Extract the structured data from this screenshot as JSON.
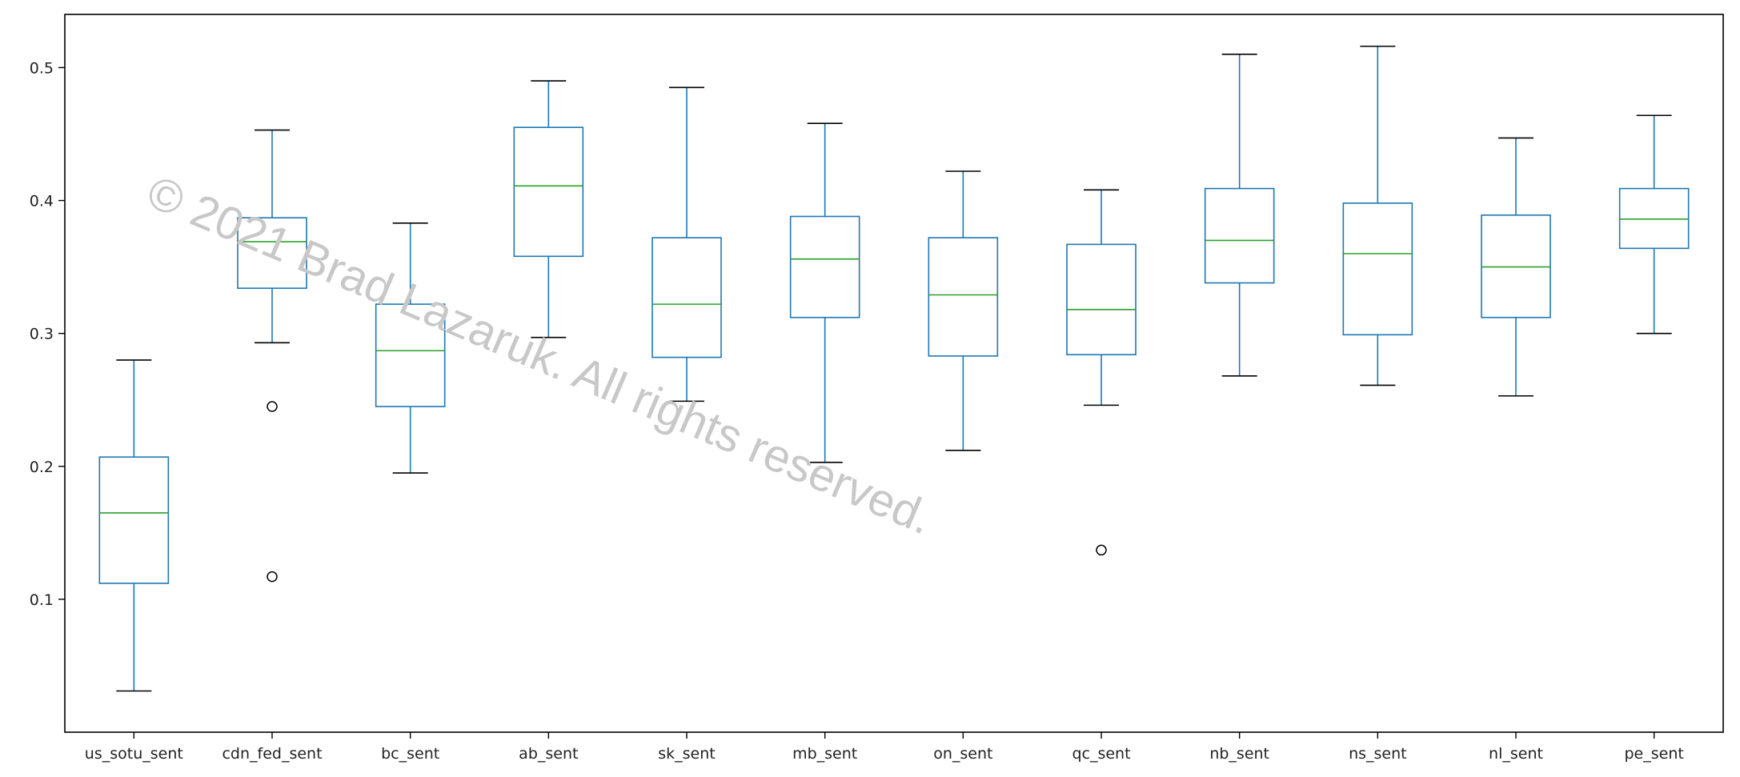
{
  "chart_data": {
    "type": "box",
    "categories": [
      "us_sotu_sent",
      "cdn_fed_sent",
      "bc_sent",
      "ab_sent",
      "sk_sent",
      "mb_sent",
      "on_sent",
      "qc_sent",
      "nb_sent",
      "ns_sent",
      "nl_sent",
      "pe_sent"
    ],
    "boxes": [
      {
        "whislo": 0.031,
        "q1": 0.112,
        "med": 0.165,
        "q3": 0.207,
        "whishi": 0.28,
        "fliers": []
      },
      {
        "whislo": 0.293,
        "q1": 0.334,
        "med": 0.369,
        "q3": 0.387,
        "whishi": 0.453,
        "fliers": [
          0.245,
          0.117
        ]
      },
      {
        "whislo": 0.195,
        "q1": 0.245,
        "med": 0.287,
        "q3": 0.322,
        "whishi": 0.383,
        "fliers": []
      },
      {
        "whislo": 0.297,
        "q1": 0.358,
        "med": 0.411,
        "q3": 0.455,
        "whishi": 0.49,
        "fliers": []
      },
      {
        "whislo": 0.249,
        "q1": 0.282,
        "med": 0.322,
        "q3": 0.372,
        "whishi": 0.485,
        "fliers": []
      },
      {
        "whislo": 0.203,
        "q1": 0.312,
        "med": 0.356,
        "q3": 0.388,
        "whishi": 0.458,
        "fliers": []
      },
      {
        "whislo": 0.212,
        "q1": 0.283,
        "med": 0.329,
        "q3": 0.372,
        "whishi": 0.422,
        "fliers": []
      },
      {
        "whislo": 0.246,
        "q1": 0.284,
        "med": 0.318,
        "q3": 0.367,
        "whishi": 0.408,
        "fliers": [
          0.137
        ]
      },
      {
        "whislo": 0.268,
        "q1": 0.338,
        "med": 0.37,
        "q3": 0.409,
        "whishi": 0.51,
        "fliers": []
      },
      {
        "whislo": 0.261,
        "q1": 0.299,
        "med": 0.36,
        "q3": 0.398,
        "whishi": 0.516,
        "fliers": []
      },
      {
        "whislo": 0.253,
        "q1": 0.312,
        "med": 0.35,
        "q3": 0.389,
        "whishi": 0.447,
        "fliers": []
      },
      {
        "whislo": 0.3,
        "q1": 0.364,
        "med": 0.386,
        "q3": 0.409,
        "whishi": 0.464,
        "fliers": []
      }
    ],
    "yticks": [
      0.1,
      0.2,
      0.3,
      0.4,
      0.5
    ],
    "ytick_labels": [
      "0.1",
      "0.2",
      "0.3",
      "0.4",
      "0.5"
    ],
    "ylim": [
      0.0,
      0.54
    ],
    "title": "",
    "xlabel": "",
    "ylabel": "",
    "grid": false,
    "colors": {
      "box": "#1f77b4",
      "median": "#2ca02c",
      "cap": "#000000",
      "axis": "#000000",
      "watermark": "#c8c8c8"
    }
  },
  "watermark": "© 2021 Brad Lazaruk. All rights reserved."
}
